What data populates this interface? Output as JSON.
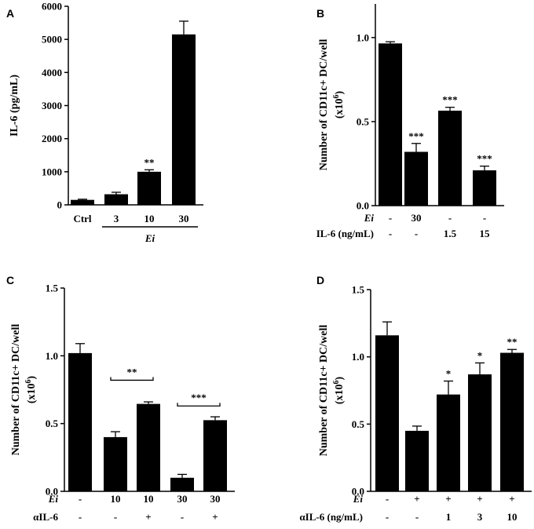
{
  "chart_data": [
    {
      "id": "A",
      "type": "bar",
      "panel_label": "A",
      "ylabel": "IL-6 (pg/mL)",
      "ylim": [
        0,
        6000
      ],
      "yticks": [
        0,
        1000,
        2000,
        3000,
        4000,
        5000,
        6000
      ],
      "ytick_labels": [
        "0",
        "1000",
        "2000",
        "3000",
        "4000",
        "5000",
        "6000"
      ],
      "categories": [
        "Ctrl",
        "3",
        "10",
        "30"
      ],
      "values": [
        150,
        320,
        1000,
        5150
      ],
      "errors": [
        20,
        60,
        60,
        400
      ],
      "significance": [
        "",
        "",
        "**",
        ""
      ],
      "group_label": "Ei",
      "group_span": [
        1,
        3
      ]
    },
    {
      "id": "B",
      "type": "bar",
      "panel_label": "B",
      "ylabel_line1": "Number of CD11c+ DC/well",
      "ylabel_line2_base": "(x10",
      "ylabel_line2_sup": "6",
      "ylabel_line2_end": ")",
      "ylim": [
        0,
        1.2
      ],
      "yticks": [
        0,
        0.5,
        1.0
      ],
      "ytick_labels": [
        "0.0",
        "0.5",
        "1.0"
      ],
      "values": [
        0.965,
        0.32,
        0.565,
        0.21
      ],
      "errors": [
        0.01,
        0.05,
        0.02,
        0.025
      ],
      "significance": [
        "",
        "***",
        "***",
        "***"
      ],
      "conditions": [
        {
          "label": "Ei",
          "values": [
            "-",
            "30",
            "-",
            "-"
          ]
        },
        {
          "label": "IL-6 (ng/mL)",
          "values": [
            "-",
            "-",
            "1.5",
            "15"
          ]
        }
      ]
    },
    {
      "id": "C",
      "type": "bar",
      "panel_label": "C",
      "ylabel_line1": "Number of CD11c+ DC/well",
      "ylabel_line2_base": "(x10",
      "ylabel_line2_sup": "6",
      "ylabel_line2_end": ")",
      "ylim": [
        0,
        1.5
      ],
      "yticks": [
        0,
        0.5,
        1.0,
        1.5
      ],
      "ytick_labels": [
        "0.0",
        "0.5",
        "1.0",
        "1.5"
      ],
      "values": [
        1.02,
        0.4,
        0.645,
        0.1,
        0.525
      ],
      "errors": [
        0.07,
        0.04,
        0.015,
        0.025,
        0.025
      ],
      "significance": [
        "",
        "",
        "",
        "",
        ""
      ],
      "brackets": [
        {
          "from": 1,
          "to": 2,
          "level": 0.82,
          "label": "**"
        },
        {
          "from": 3,
          "to": 4,
          "level": 0.63,
          "label": "***"
        }
      ],
      "conditions": [
        {
          "label": "Ei",
          "values": [
            "-",
            "10",
            "10",
            "30",
            "30"
          ]
        },
        {
          "label": "αIL-6",
          "values": [
            "-",
            "-",
            "+",
            "-",
            "+"
          ]
        }
      ]
    },
    {
      "id": "D",
      "type": "bar",
      "panel_label": "D",
      "ylabel_line1": "Number of CD11c+ DC/well",
      "ylabel_line2_base": "(x10",
      "ylabel_line2_sup": "6",
      "ylabel_line2_end": ")",
      "ylim": [
        0,
        1.5
      ],
      "yticks": [
        0,
        0.5,
        1.0,
        1.5
      ],
      "ytick_labels": [
        "0.0",
        "0.5",
        "1.0",
        "1.5"
      ],
      "values": [
        1.16,
        0.45,
        0.72,
        0.87,
        1.03
      ],
      "errors": [
        0.1,
        0.035,
        0.1,
        0.085,
        0.025
      ],
      "significance": [
        "",
        "",
        "*",
        "*",
        "**"
      ],
      "conditions": [
        {
          "label": "Ei",
          "values": [
            "-",
            "+",
            "+",
            "+",
            "+"
          ]
        },
        {
          "label": "αIL-6 (ng/mL)",
          "values": [
            "-",
            "-",
            "1",
            "3",
            "10"
          ]
        }
      ]
    }
  ]
}
